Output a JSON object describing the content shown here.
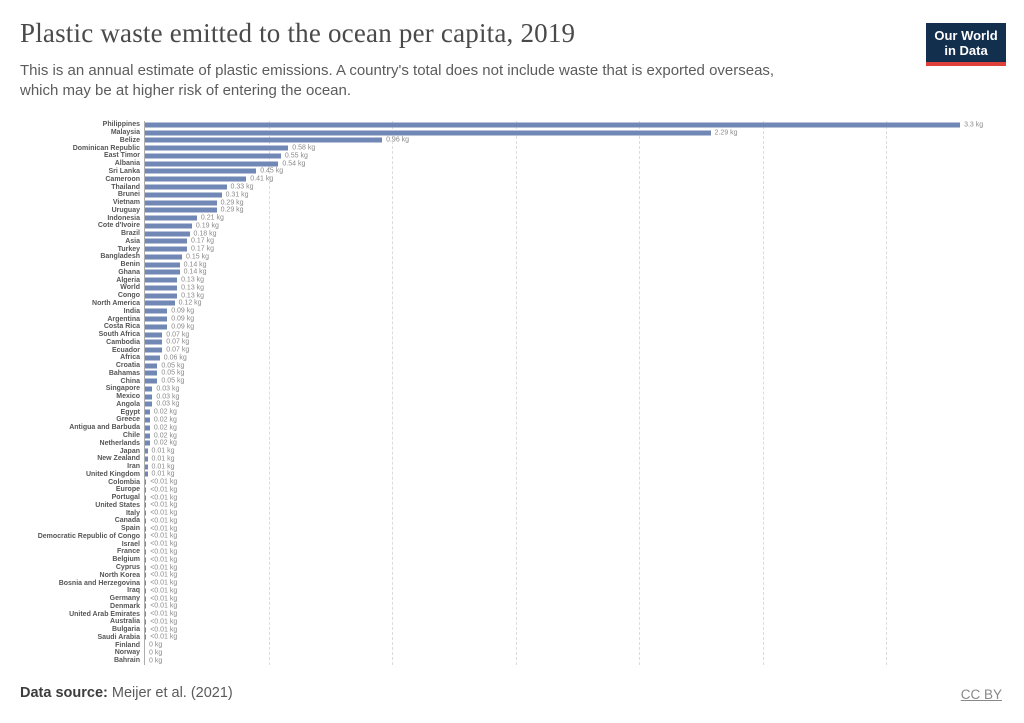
{
  "header": {
    "title": "Plastic waste emitted to the ocean per capita, 2019",
    "subtitle_lines": [
      "This is an annual estimate of plastic emissions. A country's total does not include waste that is exported overseas,",
      "which may be at higher risk of entering the ocean."
    ],
    "logo": {
      "line1": "Our World",
      "line2": "in Data"
    }
  },
  "footer": {
    "source_label": "Data source:",
    "source_value": " Meijer et al. (2021)",
    "license": "CC BY"
  },
  "colors": {
    "bar": "#7187b5",
    "logo_navy": "#132f4e",
    "logo_red": "#e0403a",
    "gridline": "#dcdcdc",
    "axis": "#adadad"
  },
  "chart_data": {
    "type": "bar",
    "orientation": "horizontal",
    "title": "Plastic waste emitted to the ocean per capita, 2019",
    "xlabel": "",
    "ylabel": "",
    "unit": "kg",
    "xlim": [
      0,
      3.52
    ],
    "grid": true,
    "gridlines_kg": [
      0.5,
      1.0,
      1.5,
      2.0,
      2.5,
      3.0
    ],
    "categories": [
      "Philippines",
      "Malaysia",
      "Belize",
      "Dominican Republic",
      "East Timor",
      "Albania",
      "Sri Lanka",
      "Cameroon",
      "Thailand",
      "Brunei",
      "Vietnam",
      "Uruguay",
      "Indonesia",
      "Cote d'Ivoire",
      "Brazil",
      "Asia",
      "Turkey",
      "Bangladesh",
      "Benin",
      "Ghana",
      "Algeria",
      "World",
      "Congo",
      "North America",
      "India",
      "Argentina",
      "Costa Rica",
      "South Africa",
      "Cambodia",
      "Ecuador",
      "Africa",
      "Croatia",
      "Bahamas",
      "China",
      "Singapore",
      "Mexico",
      "Angola",
      "Egypt",
      "Greece",
      "Antigua and Barbuda",
      "Chile",
      "Netherlands",
      "Japan",
      "New Zealand",
      "Iran",
      "United Kingdom",
      "Colombia",
      "Europe",
      "Portugal",
      "United States",
      "Italy",
      "Canada",
      "Spain",
      "Democratic Republic of Congo",
      "Israel",
      "France",
      "Belgium",
      "Cyprus",
      "North Korea",
      "Bosnia and Herzegovina",
      "Iraq",
      "Germany",
      "Denmark",
      "United Arab Emirates",
      "Australia",
      "Bulgaria",
      "Saudi Arabia",
      "Finland",
      "Norway",
      "Bahrain"
    ],
    "values": [
      3.3,
      2.29,
      0.96,
      0.58,
      0.55,
      0.54,
      0.45,
      0.41,
      0.33,
      0.31,
      0.29,
      0.29,
      0.21,
      0.19,
      0.18,
      0.17,
      0.17,
      0.15,
      0.14,
      0.14,
      0.13,
      0.13,
      0.13,
      0.12,
      0.09,
      0.09,
      0.09,
      0.07,
      0.07,
      0.07,
      0.06,
      0.05,
      0.05,
      0.05,
      0.03,
      0.03,
      0.03,
      0.02,
      0.02,
      0.02,
      0.02,
      0.02,
      0.01,
      0.01,
      0.01,
      0.01,
      0.005,
      0.005,
      0.005,
      0.005,
      0.005,
      0.005,
      0.005,
      0.005,
      0.005,
      0.005,
      0.005,
      0.005,
      0.005,
      0.005,
      0.005,
      0.005,
      0.005,
      0.005,
      0.005,
      0.005,
      0.005,
      0,
      0,
      0
    ],
    "value_labels": [
      "3.3 kg",
      "2.29 kg",
      "0.96 kg",
      "0.58 kg",
      "0.55 kg",
      "0.54 kg",
      "0.45 kg",
      "0.41 kg",
      "0.33 kg",
      "0.31 kg",
      "0.29 kg",
      "0.29 kg",
      "0.21 kg",
      "0.19 kg",
      "0.18 kg",
      "0.17 kg",
      "0.17 kg",
      "0.15 kg",
      "0.14 kg",
      "0.14 kg",
      "0.13 kg",
      "0.13 kg",
      "0.13 kg",
      "0.12 kg",
      "0.09 kg",
      "0.09 kg",
      "0.09 kg",
      "0.07 kg",
      "0.07 kg",
      "0.07 kg",
      "0.06 kg",
      "0.05 kg",
      "0.05 kg",
      "0.05 kg",
      "0.03 kg",
      "0.03 kg",
      "0.03 kg",
      "0.02 kg",
      "0.02 kg",
      "0.02 kg",
      "0.02 kg",
      "0.02 kg",
      "0.01 kg",
      "0.01 kg",
      "0.01 kg",
      "0.01 kg",
      "<0.01 kg",
      "<0.01 kg",
      "<0.01 kg",
      "<0.01 kg",
      "<0.01 kg",
      "<0.01 kg",
      "<0.01 kg",
      "<0.01 kg",
      "<0.01 kg",
      "<0.01 kg",
      "<0.01 kg",
      "<0.01 kg",
      "<0.01 kg",
      "<0.01 kg",
      "<0.01 kg",
      "<0.01 kg",
      "<0.01 kg",
      "<0.01 kg",
      "<0.01 kg",
      "<0.01 kg",
      "<0.01 kg",
      "0 kg",
      "0 kg",
      "0 kg"
    ],
    "legend": null
  }
}
